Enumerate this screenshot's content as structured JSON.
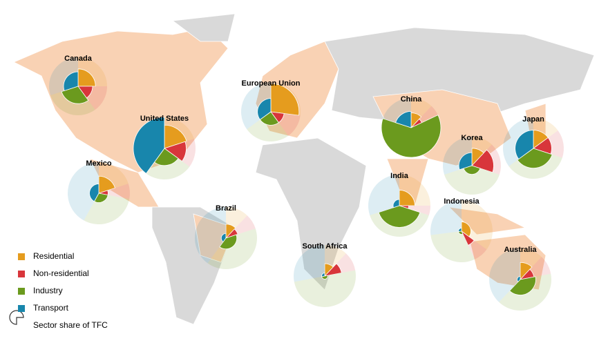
{
  "sectors": [
    {
      "name": "Residential",
      "color": "#e59c1e"
    },
    {
      "name": "Non-residential",
      "color": "#d8363b"
    },
    {
      "name": "Industry",
      "color": "#6b9a1e"
    },
    {
      "name": "Transport",
      "color": "#1886ac"
    }
  ],
  "share_legend": "Sector share of TFC",
  "countries": [
    {
      "name": "Canada",
      "shares": [
        25,
        15,
        30,
        30
      ],
      "fill": [
        0.6,
        0.5,
        0.6,
        0.5
      ]
    },
    {
      "name": "United States",
      "shares": [
        20,
        15,
        25,
        40
      ],
      "fill": [
        0.75,
        0.7,
        0.55,
        1.0
      ]
    },
    {
      "name": "Mexico",
      "shares": [
        20,
        8,
        30,
        42
      ],
      "fill": [
        0.55,
        0.3,
        0.3,
        0.3
      ]
    },
    {
      "name": "Brazil",
      "shares": [
        12,
        8,
        40,
        40
      ],
      "fill": [
        0.45,
        0.4,
        0.35,
        0.15
      ]
    },
    {
      "name": "European Union",
      "shares": [
        27,
        13,
        25,
        35
      ],
      "fill": [
        0.95,
        0.45,
        0.45,
        0.45
      ]
    },
    {
      "name": "South Africa",
      "shares": [
        12,
        10,
        50,
        28
      ],
      "fill": [
        0.4,
        0.55,
        0.1,
        0.1
      ]
    },
    {
      "name": "India",
      "shares": [
        25,
        5,
        40,
        30
      ],
      "fill": [
        0.5,
        0.3,
        0.7,
        0.2
      ]
    },
    {
      "name": "China",
      "shares": [
        12,
        6,
        62,
        20
      ],
      "fill": [
        0.5,
        0.4,
        1.0,
        0.55
      ]
    },
    {
      "name": "Korea",
      "shares": [
        12,
        18,
        40,
        30
      ],
      "fill": [
        0.6,
        0.75,
        0.3,
        0.45
      ]
    },
    {
      "name": "Japan",
      "shares": [
        15,
        15,
        35,
        35
      ],
      "fill": [
        0.6,
        0.6,
        0.65,
        0.6
      ]
    },
    {
      "name": "Indonesia",
      "shares": [
        35,
        8,
        30,
        27
      ],
      "fill": [
        0.3,
        0.5,
        0.1,
        0.1
      ]
    },
    {
      "name": "Australia",
      "shares": [
        12,
        10,
        40,
        38
      ],
      "fill": [
        0.55,
        0.45,
        0.5,
        0.1
      ]
    }
  ]
}
